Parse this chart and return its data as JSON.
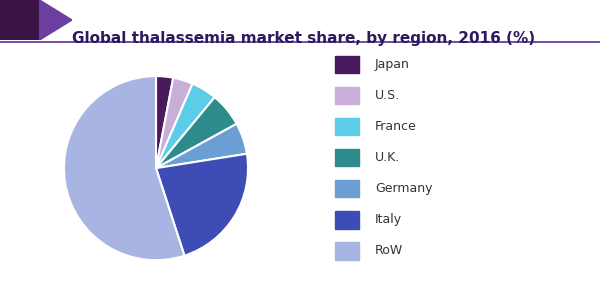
{
  "title": "Global thalassemia market share, by region, 2016 (%)",
  "labels": [
    "Japan",
    "U.S.",
    "France",
    "U.K.",
    "Germany",
    "Italy",
    "RoW"
  ],
  "values": [
    3.0,
    3.5,
    4.5,
    6.0,
    5.5,
    22.5,
    55.0
  ],
  "colors": [
    "#4a1a5e",
    "#c9aed9",
    "#5bcde8",
    "#2e8b8b",
    "#6b9fd4",
    "#3d4db5",
    "#a8b4e2"
  ],
  "background_color": "#ffffff",
  "title_fontsize": 11,
  "title_color": "#2a1a5e",
  "legend_fontsize": 9,
  "legend_text_color": "#333333",
  "header_triangle_color": "#3a1245",
  "header_triangle_color2": "#6b3fa0",
  "header_line_color": "#7b4fa8",
  "startangle": 90
}
